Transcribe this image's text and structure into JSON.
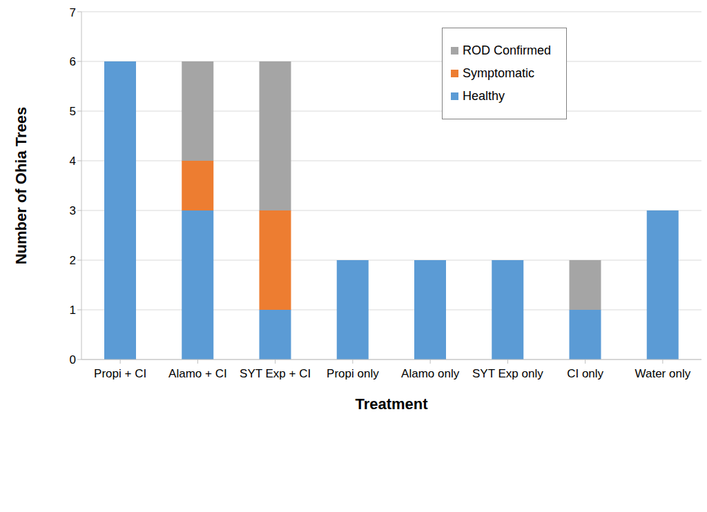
{
  "chart_data": {
    "type": "bar",
    "stacked": true,
    "x_label": "Treatment",
    "y_label": "Number of Ohia Trees",
    "categories": [
      "Propi + CI",
      "Alamo + CI",
      "SYT Exp + CI",
      "Propi only",
      "Alamo only",
      "SYT Exp only",
      "CI only",
      "Water only"
    ],
    "series": [
      {
        "name": "Healthy",
        "color": "#5b9bd5",
        "values": [
          6,
          3,
          1,
          2,
          2,
          2,
          1,
          3
        ]
      },
      {
        "name": "Symptomatic",
        "color": "#ed7d31",
        "values": [
          0,
          1,
          2,
          0,
          0,
          0,
          0,
          0
        ]
      },
      {
        "name": "ROD Confirmed",
        "color": "#a5a5a5",
        "values": [
          0,
          2,
          3,
          0,
          0,
          0,
          1,
          0
        ]
      }
    ],
    "ylim": [
      0,
      7
    ],
    "yticks": [
      0,
      1,
      2,
      3,
      4,
      5,
      6,
      7
    ],
    "grid": true,
    "legend": "upper right"
  }
}
